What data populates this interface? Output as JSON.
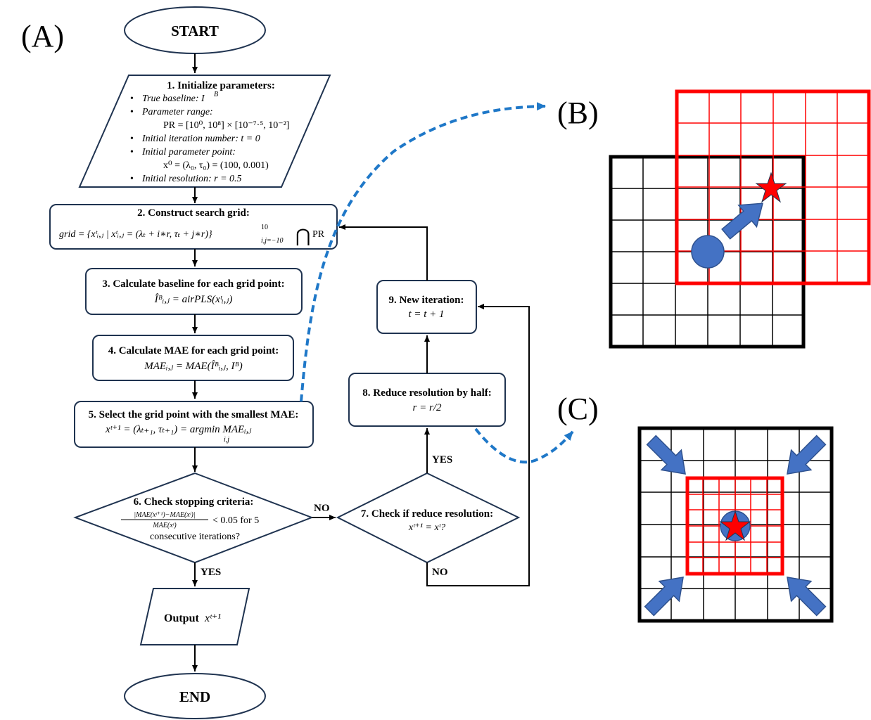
{
  "panels": {
    "a": "(A)",
    "b": "(B)",
    "c": "(C)"
  },
  "start": "START",
  "end": "END",
  "step1": {
    "title": "1. Initialize parameters:",
    "bullets": [
      "True baseline: I",
      "Parameter range:",
      "PR = [10⁰, 10⁸] × [10⁻⁷·⁵, 10⁻²]",
      "Initial iteration number: t = 0",
      "Initial parameter point:",
      "x⁰ = (λ₀, τ₀) = (100, 0.001)",
      "Initial resolution: r = 0.5"
    ],
    "baseline_sup": "B"
  },
  "step2": {
    "title": "2. Construct search grid:",
    "formula": "grid = {xᵗᵢ,ⱼ | xᵗᵢ,ⱼ = (λₜ + i∗r, τₜ + j∗r)}",
    "range_sup": "10",
    "range_sub": "i,j=−10",
    "cap": "⋂",
    "pr": "PR"
  },
  "step3": {
    "title": "3. Calculate baseline for each grid point:",
    "formula": "Îᴮᵢ,ⱼ = airPLS(xᵗᵢ,ⱼ)"
  },
  "step4": {
    "title": "4. Calculate MAE for each grid point:",
    "formula": "MAEᵢ,ⱼ = MAE(Îᴮᵢ,ⱼ, Iᴮ)"
  },
  "step5": {
    "title": "5. Select the grid point with the smallest MAE:",
    "formula": "xᵗ⁺¹ = (λₜ₊₁, τₜ₊₁) = argmin MAEᵢ,ⱼ",
    "sub": "i,j"
  },
  "step6": {
    "title": "6. Check stopping criteria:",
    "numerator": "|MAE(xᵗ⁺¹)−MAE(xᵗ)|",
    "denominator": "MAE(xᵗ)",
    "condition": "< 0.05 for 5",
    "line3": "consecutive iterations?"
  },
  "step7": {
    "title": "7. Check if reduce resolution:",
    "formula": "xᵗ⁺¹ = xᵗ?"
  },
  "step8": {
    "title": "8. Reduce resolution by half:",
    "formula": "r = r/2"
  },
  "step9": {
    "title": "9. New iteration:",
    "formula": "t = t + 1"
  },
  "output": {
    "label": "Output",
    "var": "xᵗ⁺¹"
  },
  "labels": {
    "no1": "NO",
    "yes1": "YES",
    "yes2": "YES",
    "no2": "NO"
  },
  "colors": {
    "box_stroke": "#1f3350",
    "dashed": "#1f78c8",
    "red": "#ff0000",
    "blue": "#4472c4",
    "black": "#000000"
  }
}
